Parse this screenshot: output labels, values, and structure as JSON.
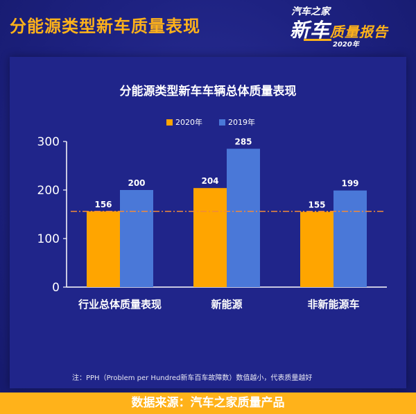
{
  "header": {
    "title": "分能源类型新车质量表现",
    "brand_line1": "汽车之家",
    "brand_line2a": "新车",
    "brand_line2b": "质量报告",
    "brand_year": "2020年"
  },
  "footnote": "注：PPH（Problem per Hundred新车百车故障数）数值越小，代表质量越好",
  "footer": "数据来源：汽车之家质量产品",
  "colors": {
    "series_2020": "#ffa500",
    "series_2019": "#4a78d8",
    "reference_line": "#f08a3a"
  },
  "chart_data": {
    "type": "bar",
    "title": "分能源类型新车车辆总体质量表现",
    "categories": [
      "行业总体质量表现",
      "新能源",
      "非新能源车"
    ],
    "series": [
      {
        "name": "2020年",
        "values": [
          156,
          204,
          155
        ]
      },
      {
        "name": "2019年",
        "values": [
          200,
          285,
          199
        ]
      }
    ],
    "ylim": [
      0,
      300
    ],
    "yticks": [
      "0",
      "100",
      "200",
      "300"
    ],
    "reference_line": 156,
    "legend": "top-center",
    "grid": false
  }
}
